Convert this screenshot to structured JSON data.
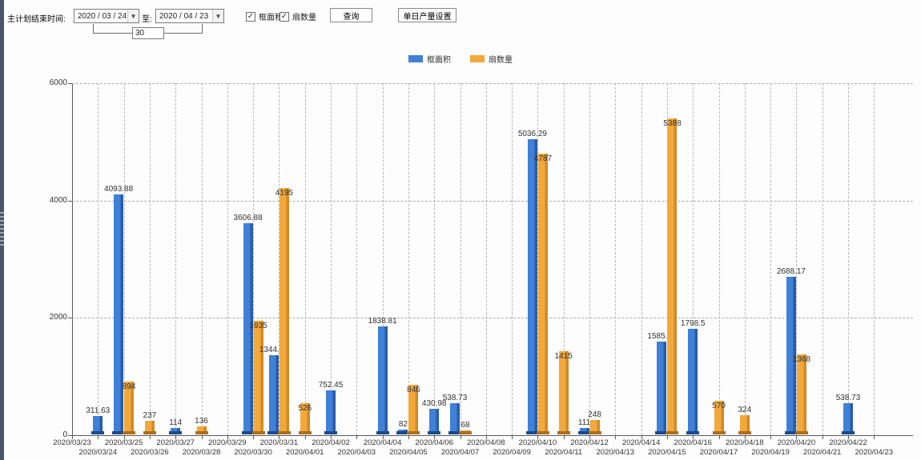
{
  "toolbar": {
    "end_time_label": "主计划结束时间:",
    "date_from": "2020 / 03 / 24",
    "to_label": "至:",
    "date_to": "2020 / 04 / 23",
    "day_span_value": "30",
    "dropdown_glyph": "▼",
    "check_glyph": "✓",
    "series_toggles": [
      {
        "label": "框面积",
        "checked": true
      },
      {
        "label": "扇数量",
        "checked": true
      }
    ],
    "query_button_label": "查询",
    "daily_output_button_label": "单日产量设置"
  },
  "legend": {
    "items": [
      {
        "label": "框面积",
        "color": "#3f80d8"
      },
      {
        "label": "扇数量",
        "color": "#f3a83a"
      }
    ]
  },
  "chart_data": {
    "type": "bar",
    "title": "",
    "xlabel": "",
    "ylabel": "",
    "ylim": [
      0,
      6000
    ],
    "yticks": [
      0,
      2000,
      4000,
      6000
    ],
    "grid": "dashed",
    "legend_position": "top-center",
    "categories": [
      "2020/03/23",
      "2020/03/24",
      "2020/03/25",
      "2020/03/26",
      "2020/03/27",
      "2020/03/28",
      "2020/03/29",
      "2020/03/30",
      "2020/03/31",
      "2020/04/01",
      "2020/04/02",
      "2020/04/03",
      "2020/04/04",
      "2020/04/05",
      "2020/04/06",
      "2020/04/07",
      "2020/04/08",
      "2020/04/09",
      "2020/04/10",
      "2020/04/11",
      "2020/04/12",
      "2020/04/13",
      "2020/04/14",
      "2020/04/15",
      "2020/04/16",
      "2020/04/17",
      "2020/04/18",
      "2020/04/19",
      "2020/04/20",
      "2020/04/21",
      "2020/04/22",
      "2020/04/23"
    ],
    "series": [
      {
        "name": "框面积",
        "key": "frame-area",
        "color": "#3f80d8",
        "shade": "#2a5ca6",
        "base": "#1d4a86",
        "values": [
          null,
          311.63,
          4093.88,
          null,
          114,
          null,
          null,
          3606.88,
          1344.95,
          null,
          752.45,
          null,
          1838.81,
          82,
          430.98,
          538.73,
          null,
          null,
          5036.29,
          null,
          111,
          null,
          null,
          1585.96,
          1798.5,
          null,
          null,
          null,
          2688.17,
          null,
          538.73,
          null
        ]
      },
      {
        "name": "扇数量",
        "key": "fan-count",
        "color": "#f3a83a",
        "shade": "#d18a28",
        "base": "#aa6f1e",
        "values": [
          null,
          null,
          894,
          237,
          null,
          136,
          null,
          1935,
          4195,
          526,
          null,
          null,
          null,
          846,
          null,
          68,
          null,
          null,
          4787,
          1415,
          248,
          null,
          null,
          5388,
          null,
          570,
          324,
          null,
          1368,
          null,
          null,
          null
        ]
      }
    ]
  }
}
